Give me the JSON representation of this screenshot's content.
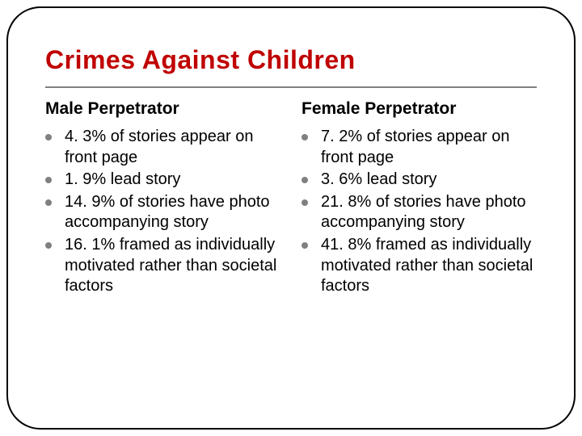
{
  "title": "Crimes Against Children",
  "colors": {
    "title": "#c00000",
    "rule": "#808080",
    "bullet": "#808080",
    "text": "#000000",
    "frame": "#000000",
    "background": "#ffffff"
  },
  "typography": {
    "title_fontsize": 32,
    "title_weight": 900,
    "heading_fontsize": 21,
    "heading_weight": 700,
    "body_fontsize": 20
  },
  "left": {
    "heading": "Male Perpetrator",
    "items": [
      "4. 3% of stories appear on front page",
      "1. 9% lead story",
      "14. 9% of stories have photo accompanying story",
      "16. 1% framed as individually motivated rather than societal factors"
    ]
  },
  "right": {
    "heading": "Female Perpetrator",
    "items": [
      "7. 2% of stories appear on front page",
      "3. 6% lead story",
      "21. 8% of stories have photo accompanying story",
      "41. 8% framed as individually motivated rather than societal factors"
    ]
  }
}
